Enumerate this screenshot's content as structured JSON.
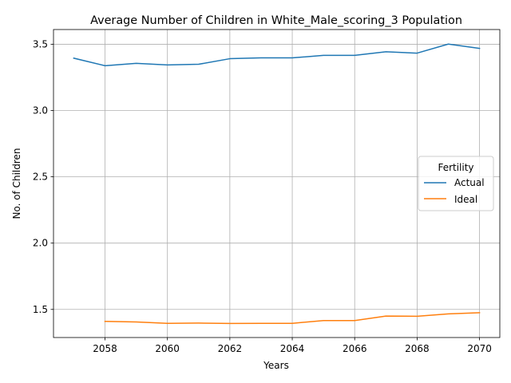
{
  "chart_data": {
    "type": "line",
    "title": "Average Number of Children in White_Male_scoring_3 Population",
    "xlabel": "Years",
    "ylabel": "No. of Children",
    "xlim": [
      2056.35,
      2070.65
    ],
    "ylim": [
      1.288,
      3.611
    ],
    "xticks": [
      2058,
      2060,
      2062,
      2064,
      2066,
      2068,
      2070
    ],
    "yticks": [
      1.5,
      2.0,
      2.5,
      3.0,
      3.5
    ],
    "ytick_labels": [
      "1.5",
      "2.0",
      "2.5",
      "3.0",
      "3.5"
    ],
    "grid": true,
    "legend": {
      "title": "Fertility",
      "placement": "center-right"
    },
    "series": [
      {
        "name": "Actual",
        "color": "#1f77b4",
        "x": [
          2057,
          2058,
          2059,
          2060,
          2061,
          2062,
          2063,
          2064,
          2065,
          2066,
          2067,
          2068,
          2069,
          2070
        ],
        "y": [
          3.395,
          3.338,
          3.356,
          3.344,
          3.349,
          3.391,
          3.397,
          3.397,
          3.416,
          3.416,
          3.443,
          3.433,
          3.501,
          3.469
        ]
      },
      {
        "name": "Ideal",
        "color": "#ff7f0e",
        "x": [
          2058,
          2059,
          2060,
          2061,
          2062,
          2063,
          2064,
          2065,
          2066,
          2067,
          2068,
          2069,
          2070
        ],
        "y": [
          1.41,
          1.405,
          1.395,
          1.397,
          1.394,
          1.395,
          1.395,
          1.416,
          1.416,
          1.45,
          1.448,
          1.466,
          1.475
        ]
      }
    ]
  }
}
